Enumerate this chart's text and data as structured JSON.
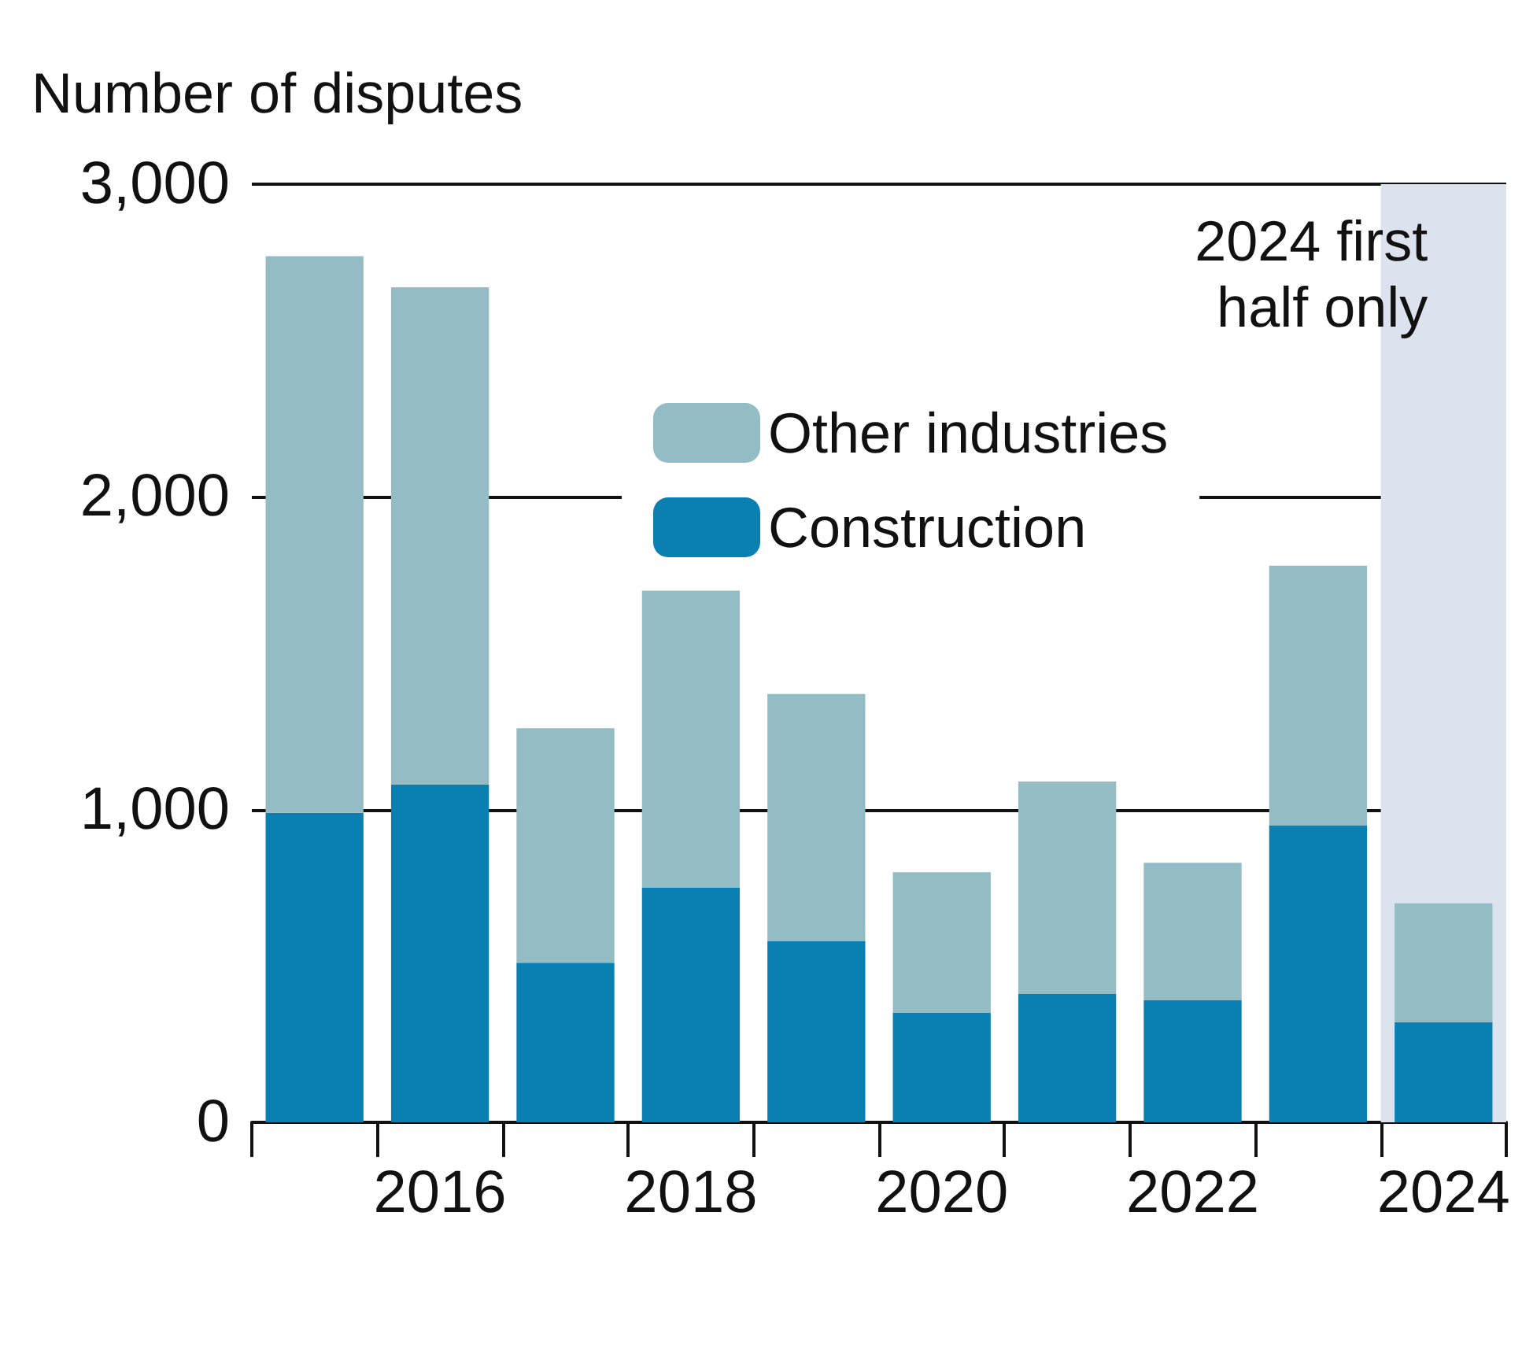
{
  "chart_data": {
    "type": "bar",
    "stacked": true,
    "ylabel": "Number of disputes",
    "categories": [
      null,
      "2016",
      null,
      "2018",
      null,
      "2020",
      null,
      "2022",
      null,
      "2024"
    ],
    "series": [
      {
        "name": "Construction",
        "color": "#0a80b2",
        "values": [
          990,
          1080,
          510,
          750,
          580,
          350,
          410,
          390,
          950,
          320
        ]
      },
      {
        "name": "Other industries",
        "color": "#93bcc5",
        "values": [
          1780,
          1590,
          750,
          950,
          790,
          450,
          680,
          440,
          830,
          380
        ]
      }
    ],
    "ylim": [
      0,
      3000
    ],
    "yticks": [
      {
        "value": 0,
        "label": "0"
      },
      {
        "value": 1000,
        "label": "1,000"
      },
      {
        "value": 2000,
        "label": "2,000"
      },
      {
        "value": 3000,
        "label": "3,000"
      }
    ],
    "grid": "y",
    "legend": "top",
    "bands": [
      {
        "axis": "x",
        "from": "2024",
        "to": "2024",
        "label": "2024 first half only",
        "color": "#dde3ee"
      }
    ]
  }
}
